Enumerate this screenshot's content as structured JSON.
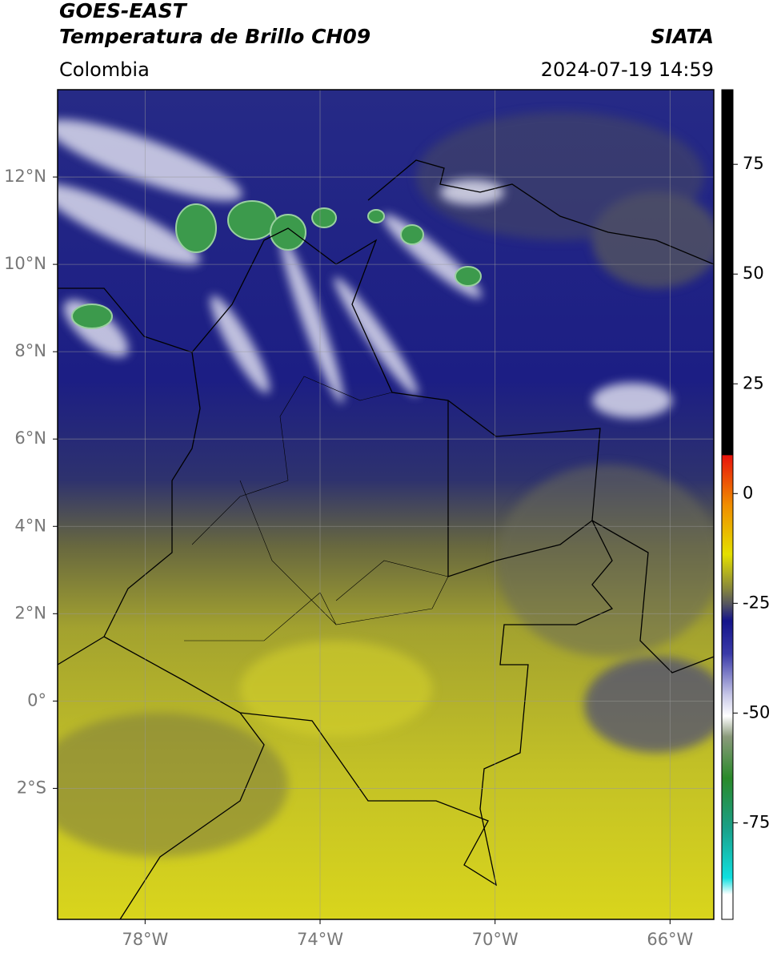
{
  "header": {
    "title": "GOES-EAST",
    "subtitle": "Temperatura de Brillo CH09",
    "region": "Colombia",
    "source": "SIATA",
    "timestamp": "2024-07-19 14:59"
  },
  "map": {
    "lon_range": [
      -80,
      -65
    ],
    "lat_range": [
      -5,
      14
    ],
    "grid": true,
    "lon_ticks": [
      {
        "value": -78,
        "label": "78°W"
      },
      {
        "value": -74,
        "label": "74°W"
      },
      {
        "value": -70,
        "label": "70°W"
      },
      {
        "value": -66,
        "label": "66°W"
      }
    ],
    "lat_ticks": [
      {
        "value": 12,
        "label": "12°N"
      },
      {
        "value": 10,
        "label": "10°N"
      },
      {
        "value": 8,
        "label": "8°N"
      },
      {
        "value": 6,
        "label": "6°N"
      },
      {
        "value": 4,
        "label": "4°N"
      },
      {
        "value": 2,
        "label": "2°N"
      },
      {
        "value": 0,
        "label": "0°"
      },
      {
        "value": -2,
        "label": "2°S"
      }
    ]
  },
  "colorbar": {
    "range": [
      -97,
      92
    ],
    "ticks": [
      75,
      50,
      25,
      0,
      -25,
      -50,
      -75
    ]
  }
}
